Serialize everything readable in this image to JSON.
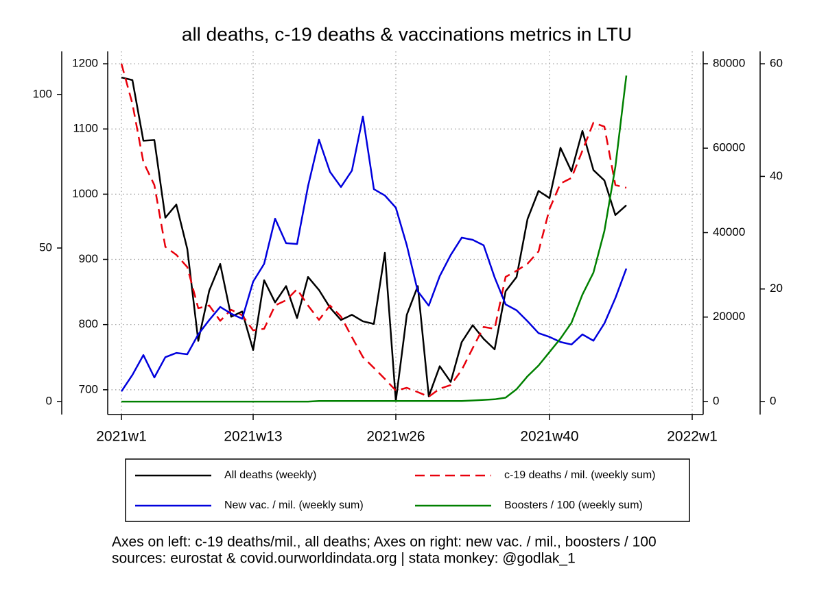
{
  "chart_data": {
    "type": "line",
    "title": "all deaths, c-19 deaths & vaccinations metrics in LTU",
    "notes": [
      "Axes on left: c-19 deaths/mil., all deaths; Axes on right: new vac. / mil., boosters / 100",
      "sources: eurostat & covid.ourworldindata.org | stata monkey: @godlak_1"
    ],
    "x": [
      1,
      2,
      3,
      4,
      5,
      6,
      7,
      8,
      9,
      10,
      11,
      12,
      13,
      14,
      15,
      16,
      17,
      18,
      19,
      20,
      21,
      22,
      23,
      24,
      25,
      26,
      27,
      28,
      29,
      30,
      31,
      32,
      33,
      34,
      35,
      36,
      37,
      38,
      39,
      40,
      41,
      42,
      43,
      44,
      45,
      46,
      47
    ],
    "xlim": [
      -0.25,
      54
    ],
    "xticks": [
      {
        "value": 1,
        "label": "2021w1"
      },
      {
        "value": 13,
        "label": "2021w13"
      },
      {
        "value": 26,
        "label": "2021w26"
      },
      {
        "value": 40,
        "label": "2021w40"
      },
      {
        "value": 53,
        "label": "2022w1"
      }
    ],
    "grid": true,
    "axes": [
      {
        "side": "left",
        "lim": [
          662,
          1219
        ],
        "ticks": [
          700,
          800,
          900,
          1000,
          1100,
          1200
        ]
      },
      {
        "side": "left",
        "lim": [
          -4.2,
          114
        ],
        "ticks": [
          0,
          50,
          100
        ]
      },
      {
        "side": "right",
        "lim": [
          -3083,
          82921
        ],
        "ticks": [
          0,
          20000,
          40000,
          60000,
          80000
        ]
      },
      {
        "side": "right",
        "lim": [
          -2.3,
          62.2
        ],
        "ticks": [
          0,
          20,
          40,
          60
        ]
      }
    ],
    "series": [
      {
        "name": "All deaths (weekly)",
        "color": "#000000",
        "axis": 0,
        "dash": "solid",
        "values": [
          1179,
          1175,
          1082,
          1083,
          964,
          984,
          916,
          775,
          852,
          893,
          812,
          820,
          761,
          868,
          834,
          859,
          810,
          873,
          853,
          826,
          807,
          815,
          805,
          801,
          910,
          683,
          815,
          859,
          690,
          736,
          712,
          773,
          799,
          778,
          762,
          851,
          873,
          962,
          1005,
          994,
          1071,
          1035,
          1097,
          1037,
          1021,
          968,
          983
        ]
      },
      {
        "name": "c-19 deaths / mil. (weekly sum)",
        "color": "#e8000b",
        "axis": 1,
        "dash": "dashed",
        "values": [
          110,
          97,
          78,
          70.5,
          50.4,
          47.8,
          43.8,
          30.4,
          31.3,
          26.3,
          29.9,
          28.1,
          23.2,
          23.7,
          31.3,
          33,
          36.6,
          31.3,
          26.6,
          31.3,
          27.7,
          21,
          14.5,
          11,
          7.4,
          3.6,
          4.5,
          3.1,
          1.6,
          4.2,
          5.4,
          10.3,
          17.4,
          24.3,
          23.7,
          40.6,
          42.6,
          44.9,
          48.9,
          62.7,
          71,
          72.8,
          81.7,
          90.8,
          89.5,
          70.5,
          69.6
        ]
      },
      {
        "name": "New vac. / mil. (weekly sum)",
        "color": "#0000dd",
        "axis": 2,
        "dash": "solid",
        "values": [
          2400,
          6300,
          11000,
          5700,
          10500,
          11500,
          11200,
          15900,
          19300,
          22400,
          20800,
          19600,
          28400,
          32600,
          43300,
          37500,
          37300,
          51000,
          62000,
          54400,
          50800,
          54700,
          67500,
          50300,
          48800,
          45900,
          37000,
          26100,
          22700,
          29700,
          34700,
          38800,
          38300,
          37000,
          29400,
          23000,
          21600,
          19000,
          16200,
          15300,
          14100,
          13500,
          15900,
          14400,
          18500,
          24500,
          31500
        ]
      },
      {
        "name": "Boosters / 100 (weekly sum)",
        "color": "#008000",
        "axis": 3,
        "dash": "solid",
        "values": [
          0,
          0,
          0,
          0,
          0,
          0,
          0,
          0,
          0,
          0,
          0,
          0,
          0,
          0,
          0,
          0,
          0,
          0,
          0.1,
          0.1,
          0.1,
          0.1,
          0.1,
          0.1,
          0.1,
          0.1,
          0.1,
          0.1,
          0.1,
          0.1,
          0.1,
          0.1,
          0.2,
          0.3,
          0.4,
          0.7,
          2.2,
          4.5,
          6.4,
          8.8,
          11.2,
          14,
          19,
          22.9,
          30.3,
          41.7,
          57.9
        ]
      }
    ]
  }
}
